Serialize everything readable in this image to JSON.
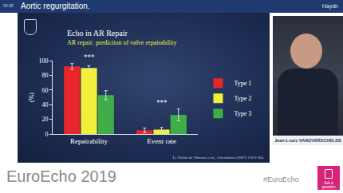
{
  "header": {
    "time": "09:05",
    "title": "Aortic regurgitation.",
    "right": "Haydn"
  },
  "slide": {
    "title": "Echo in AR Repair",
    "subtitle": "AR repair: prediction of valve repairability",
    "citation": "Le Polain de Waroux et al., Circulation (2007) 116:I-264"
  },
  "chart_data": {
    "type": "bar",
    "categories": [
      "Repairability",
      "Event rate"
    ],
    "series": [
      {
        "name": "Type 1",
        "color": "#e8262a",
        "values": [
          92,
          5
        ],
        "errors": [
          4,
          3
        ]
      },
      {
        "name": "Type 2",
        "color": "#f2ef3a",
        "values": [
          90,
          6
        ],
        "errors": [
          3,
          3
        ]
      },
      {
        "name": "Type 3",
        "color": "#3fae49",
        "values": [
          53,
          26
        ],
        "errors": [
          6,
          8
        ]
      }
    ],
    "y_label": "(%)",
    "ylim": [
      0,
      100
    ],
    "yticks": [
      0,
      20,
      40,
      60,
      80,
      100
    ],
    "annotations": [
      {
        "text": "***",
        "category": "Repairability"
      },
      {
        "text": "***",
        "category": "Event rate"
      }
    ],
    "legend": "right",
    "grid": false
  },
  "speaker": {
    "name": "Jean-Louis VANOVERSCHELDE"
  },
  "footer": {
    "event": "EuroEcho 2019",
    "hashtag": "#EuroEcho",
    "button": "Ask a question"
  }
}
